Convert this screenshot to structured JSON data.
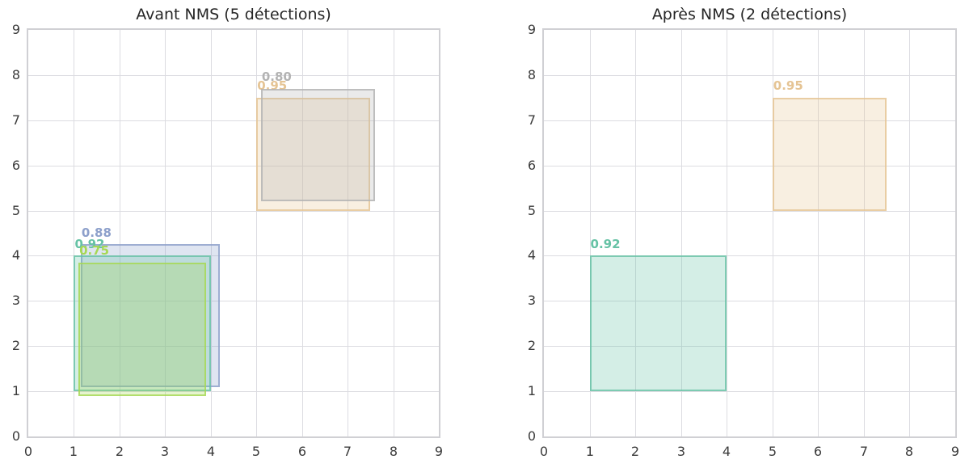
{
  "figure": {
    "background": "#ffffff",
    "grid_color": "#dcdce1",
    "frame_color": "#d0d0d4",
    "tick_color": "#3b3b3b",
    "title_color": "#262626"
  },
  "chart_data": [
    {
      "type": "scatter",
      "subtype": "detection-boxes",
      "title": "Avant NMS (5 détections)",
      "xlim": [
        0,
        9
      ],
      "ylim": [
        0,
        9
      ],
      "xticks": [
        "0",
        "1",
        "2",
        "3",
        "4",
        "5",
        "6",
        "7",
        "8",
        "9"
      ],
      "yticks": [
        "0",
        "1",
        "2",
        "3",
        "4",
        "5",
        "6",
        "7",
        "8",
        "9"
      ],
      "grid": true,
      "legend": "none",
      "boxes": [
        {
          "score_label": "0.88",
          "score": 0.88,
          "x1": 1.15,
          "y1": 1.1,
          "x2": 4.2,
          "y2": 4.25,
          "color": "#8da0cb"
        },
        {
          "score_label": "0.92",
          "score": 0.92,
          "x1": 1.0,
          "y1": 1.0,
          "x2": 4.0,
          "y2": 4.0,
          "color": "#66c2a5"
        },
        {
          "score_label": "0.75",
          "score": 0.75,
          "x1": 1.1,
          "y1": 0.9,
          "x2": 3.9,
          "y2": 3.85,
          "color": "#a6d854"
        },
        {
          "score_label": "0.95",
          "score": 0.95,
          "x1": 5.0,
          "y1": 5.0,
          "x2": 7.5,
          "y2": 7.5,
          "color": "#e5c494"
        },
        {
          "score_label": "0.80",
          "score": 0.8,
          "x1": 5.1,
          "y1": 5.2,
          "x2": 7.6,
          "y2": 7.7,
          "color": "#b3b3b3"
        }
      ]
    },
    {
      "type": "scatter",
      "subtype": "detection-boxes",
      "title": "Après NMS (2 détections)",
      "xlim": [
        0,
        9
      ],
      "ylim": [
        0,
        9
      ],
      "xticks": [
        "0",
        "1",
        "2",
        "3",
        "4",
        "5",
        "6",
        "7",
        "8",
        "9"
      ],
      "yticks": [
        "0",
        "1",
        "2",
        "3",
        "4",
        "5",
        "6",
        "7",
        "8",
        "9"
      ],
      "grid": true,
      "legend": "none",
      "boxes": [
        {
          "score_label": "0.95",
          "score": 0.95,
          "x1": 5.0,
          "y1": 5.0,
          "x2": 7.5,
          "y2": 7.5,
          "color": "#e5c494"
        },
        {
          "score_label": "0.92",
          "score": 0.92,
          "x1": 1.0,
          "y1": 1.0,
          "x2": 4.0,
          "y2": 4.0,
          "color": "#66c2a5"
        }
      ]
    }
  ]
}
